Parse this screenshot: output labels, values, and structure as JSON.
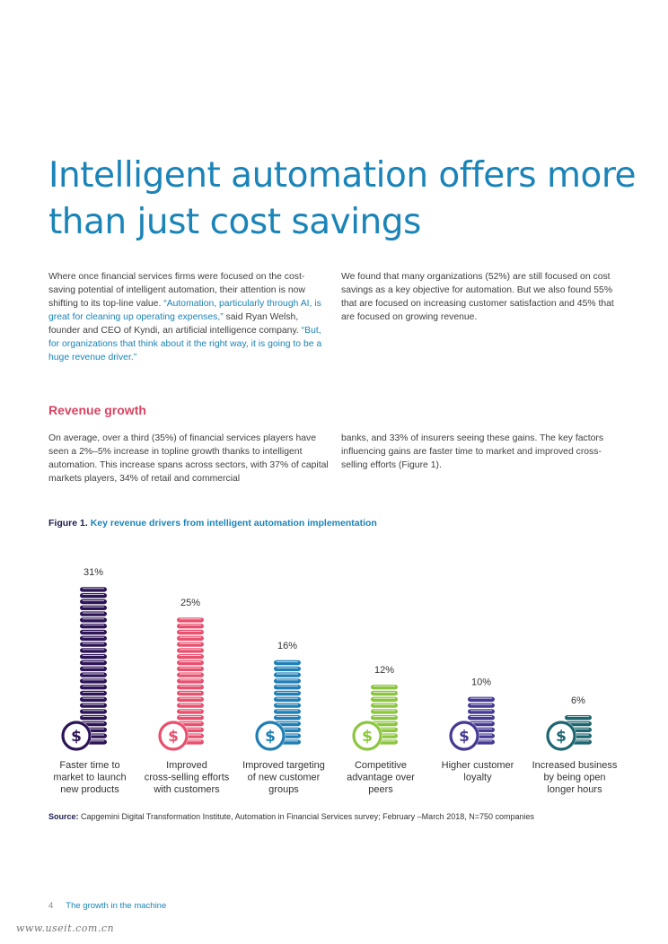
{
  "title": "Intelligent automation offers more than just cost savings",
  "intro_left": {
    "t1": "Where once financial services firms were focused on the cost-saving potential of intelligent automation, their attention is now shifting to its top-line value. ",
    "q1": "“Automation, particularly through AI, is great for cleaning up operating expenses,”",
    "t2": " said Ryan Welsh, founder and CEO of Kyndi, an artificial intelligence company. ",
    "q2": "“But, for organizations that think about it the right way, it is going to be a huge revenue driver.”"
  },
  "intro_right": "We found that many organizations (52%) are still focused on cost savings as a key objective for automation. But we also found 55% that are focused on increasing customer satisfaction and 45% that are focused on growing revenue.",
  "section_heading": "Revenue growth",
  "revenue_left": "On average, over a third (35%) of financial services players have seen a 2%–5% increase in topline growth thanks to intelligent automation. This increase spans across sectors, with 37% of capital markets players, 34% of retail and commercial",
  "revenue_right": "banks, and 33% of insurers seeing these gains. The key factors influencing gains are faster time to market and improved cross-selling efforts (Figure 1).",
  "figure": {
    "number": "Figure 1.",
    "title": "Key revenue drivers from intelligent automation implementation"
  },
  "chart_data": {
    "type": "bar",
    "title": "Key revenue drivers from intelligent automation implementation",
    "categories": [
      [
        "Faster time to",
        "market to launch",
        "new products"
      ],
      [
        "Improved",
        "cross-selling efforts",
        "with customers"
      ],
      [
        "Improved targeting",
        "of new customer",
        "groups"
      ],
      [
        "Competitive",
        "advantage over",
        "peers"
      ],
      [
        "Higher customer",
        "loyalty"
      ],
      [
        "Increased business",
        "by being open",
        "longer hours"
      ]
    ],
    "values": [
      31,
      25,
      16,
      12,
      10,
      6
    ],
    "value_labels": [
      "31%",
      "25%",
      "16%",
      "12%",
      "10%",
      "6%"
    ],
    "colors": [
      "#2d1457",
      "#e8506e",
      "#1f7fb5",
      "#8cc63f",
      "#443a94",
      "#1c6670"
    ],
    "unit": "%",
    "xlabel": "",
    "ylabel": ""
  },
  "source": {
    "label": "Source:",
    "text": " Capgemini Digital Transformation Institute, Automation in Financial Services survey; February –March 2018, N=750 companies"
  },
  "footer": {
    "page": "4",
    "title": "The growth in the machine"
  },
  "watermark": "www.useit.com.cn"
}
